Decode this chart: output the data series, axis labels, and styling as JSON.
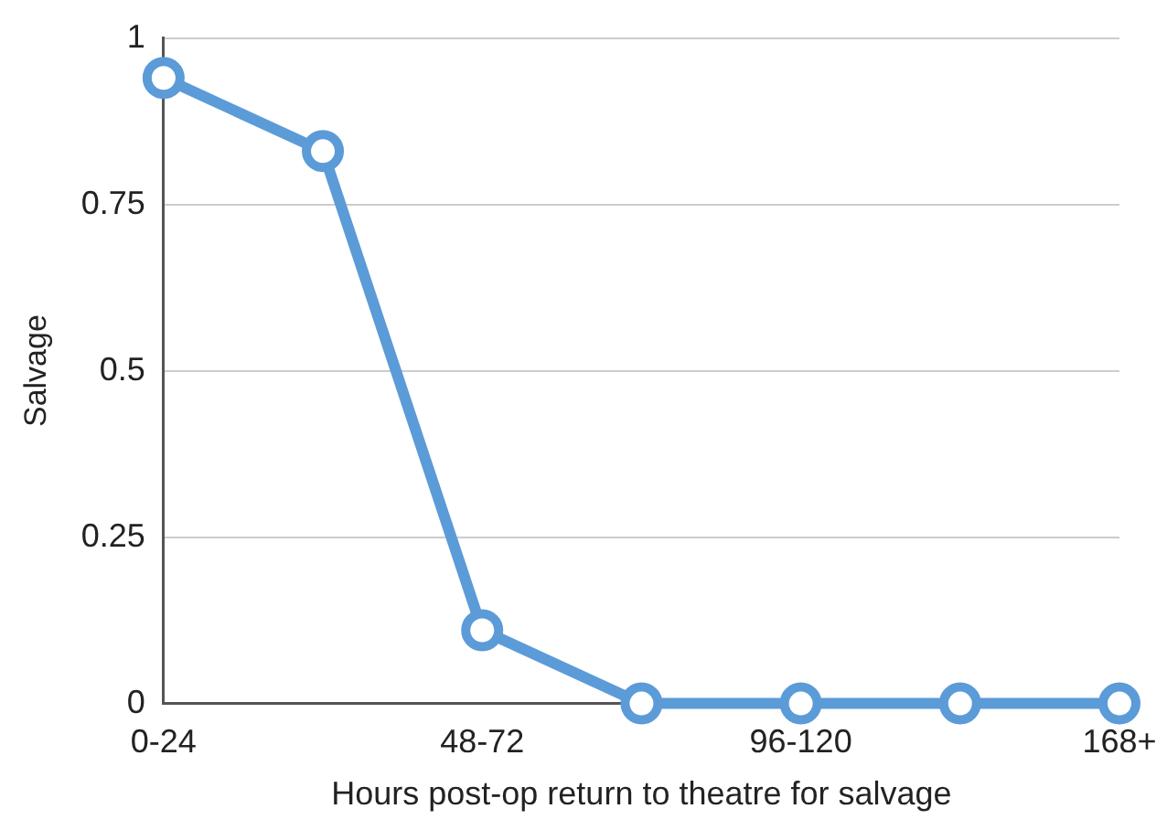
{
  "chart_data": {
    "type": "line",
    "xlabel": "Hours post-op return to theatre for salvage",
    "ylabel": "Salvage",
    "categories": [
      "0-24",
      null,
      "48-72",
      null,
      "96-120",
      null,
      "168+"
    ],
    "series": [
      {
        "color": "#5b9bd8",
        "values": [
          0.94,
          0.83,
          0.11,
          0,
          0,
          0,
          0
        ]
      }
    ],
    "ylim": [
      0,
      1
    ],
    "yticks": [
      0,
      0.25,
      0.5,
      0.75,
      1
    ],
    "grid": "y",
    "legend": false,
    "marker": "circle",
    "line_style": "solid"
  }
}
